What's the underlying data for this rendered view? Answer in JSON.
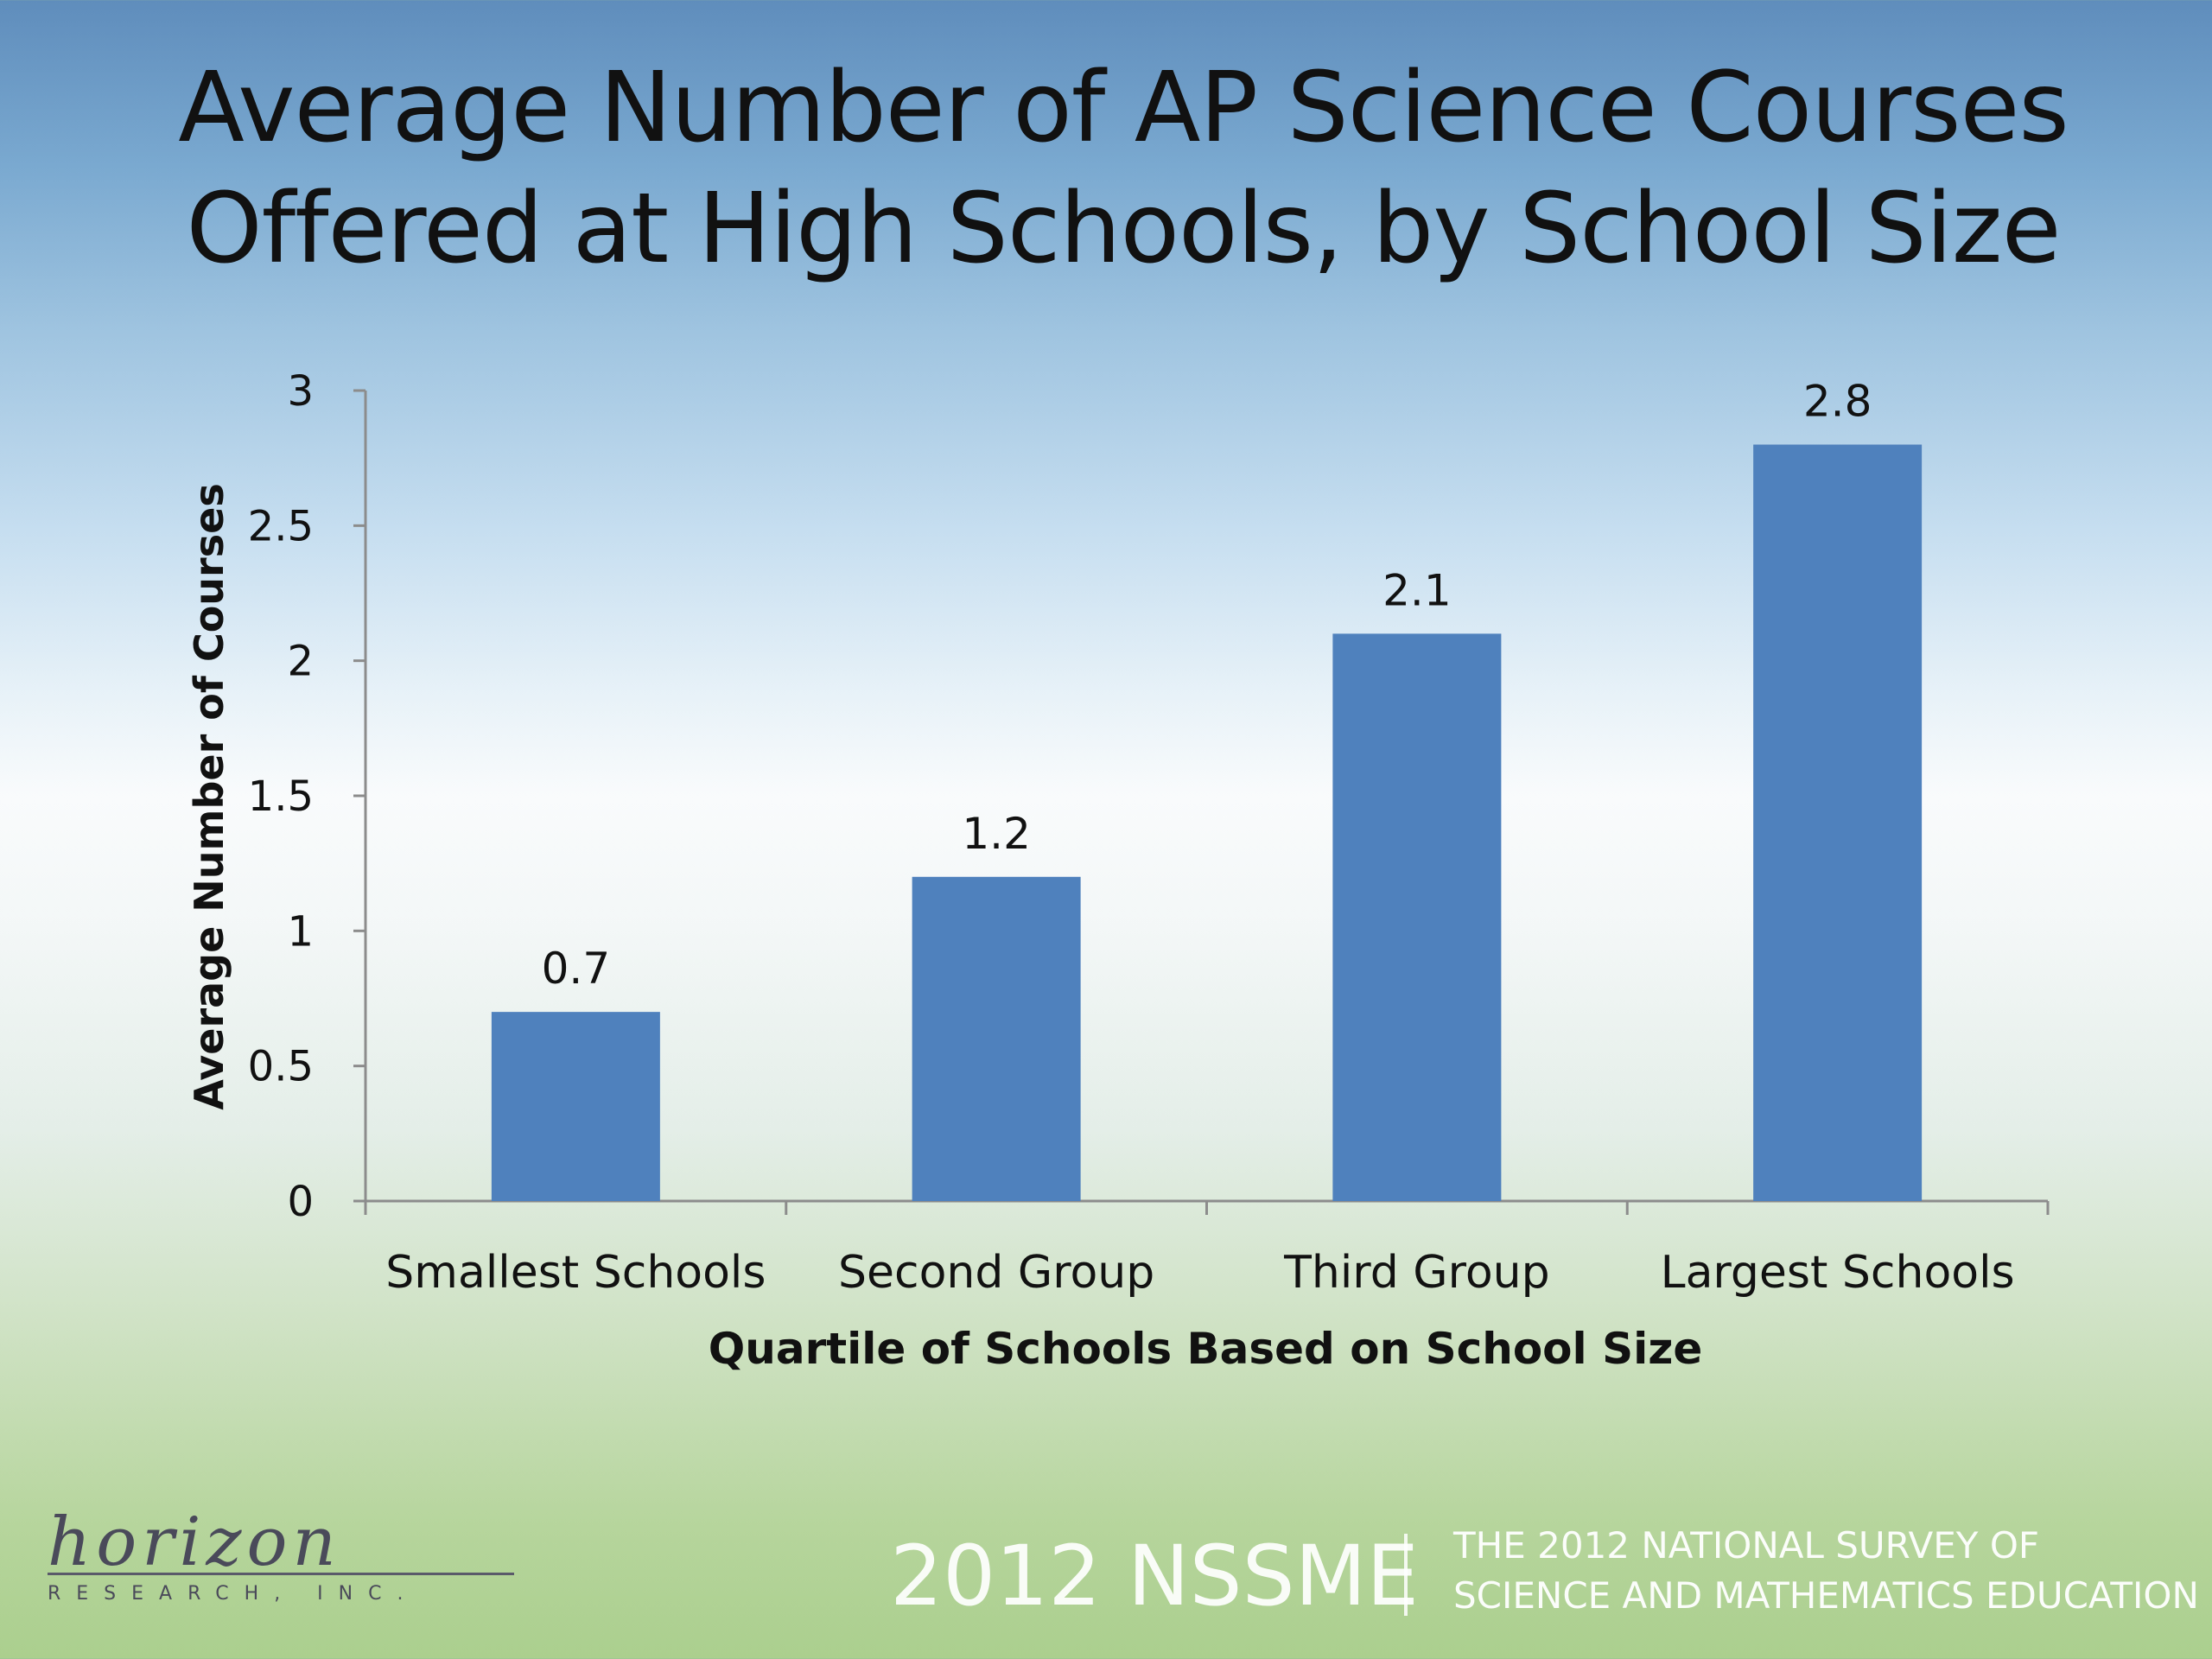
{
  "slide": {
    "title_line1": "Average Number of AP Science Courses",
    "title_line2": "Offered at High Schools, by School Size"
  },
  "chart_data": {
    "type": "bar",
    "categories": [
      "Smallest Schools",
      "Second Group",
      "Third Group",
      "Largest Schools"
    ],
    "values": [
      0.7,
      1.2,
      2.1,
      2.8
    ],
    "data_labels": [
      "0.7",
      "1.2",
      "2.1",
      "2.8"
    ],
    "xlabel": "Quartile of Schools Based on School Size",
    "ylabel": "Average Number of Courses",
    "ylim": [
      0,
      3
    ],
    "yticks": [
      0,
      0.5,
      1,
      1.5,
      2,
      2.5,
      3
    ],
    "ytick_labels": [
      "0",
      "0.5",
      "1",
      "1.5",
      "2",
      "2.5",
      "3"
    ],
    "grid": false,
    "legend": "none",
    "bar_color": "#4f81bd"
  },
  "footer": {
    "survey_short": "2012 NSSME",
    "survey_line1": "THE 2012 NATIONAL SURVEY OF",
    "survey_line2": "SCIENCE AND MATHEMATICS EDUCATION",
    "logo_name": "horizon",
    "logo_sub": "RESEARCH, INC."
  }
}
